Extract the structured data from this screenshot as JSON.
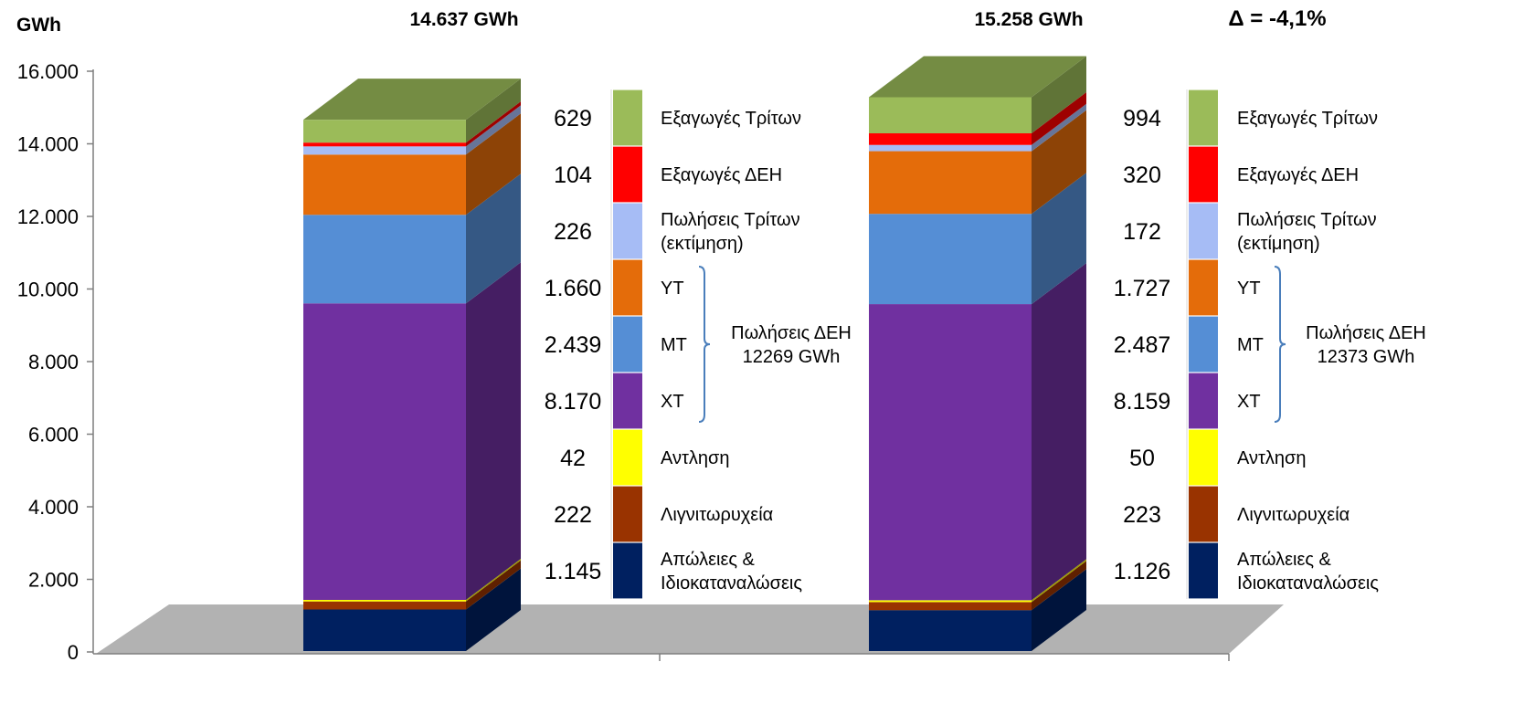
{
  "chart_data": {
    "type": "bar",
    "stacked": true,
    "style": "3d-stacked-columns",
    "ylabel": "GWh",
    "ylim": [
      0,
      16000
    ],
    "yticks": [
      "0",
      "2.000",
      "4.000",
      "6.000",
      "8.000",
      "10.000",
      "12.000",
      "14.000",
      "16.000"
    ],
    "grid": false,
    "delta_label": "Δ = -4,1%",
    "series": [
      {
        "name": "Απώλειες & Ιδιοκαταναλώσεις",
        "color": "#002060"
      },
      {
        "name": "Λιγνιτωρυχεία",
        "color": "#993300"
      },
      {
        "name": "Αντληση",
        "color": "#ffff00"
      },
      {
        "name": "ΧΤ",
        "color": "#7030a0"
      },
      {
        "name": "ΜΤ",
        "color": "#558ed5"
      },
      {
        "name": "ΥΤ",
        "color": "#e46c0a"
      },
      {
        "name": "Πωλήσεις Τρίτων (εκτίμηση)",
        "color": "#a6bcf5"
      },
      {
        "name": "Εξαγωγές ΔΕΗ",
        "color": "#ff0000"
      },
      {
        "name": "Εξαγωγές Τρίτων",
        "color": "#9bbb59"
      }
    ],
    "bars": [
      {
        "total_label": "14.637 GWh",
        "values": [
          1145,
          222,
          42,
          8170,
          2439,
          1660,
          226,
          104,
          629
        ],
        "value_labels": [
          "1.145",
          "222",
          "42",
          "8.170",
          "2.439",
          "1.660",
          "226",
          "104",
          "629"
        ],
        "bracket_label": [
          "Πωλήσεις ΔΕΗ",
          "12269 GWh"
        ]
      },
      {
        "total_label": "15.258 GWh",
        "values": [
          1126,
          223,
          50,
          8159,
          2487,
          1727,
          172,
          320,
          994
        ],
        "value_labels": [
          "1.126",
          "223",
          "50",
          "8.159",
          "2.487",
          "1.727",
          "172",
          "320",
          "994"
        ],
        "bracket_label": [
          "Πωλήσεις ΔΕΗ",
          "12373 GWh"
        ]
      }
    ],
    "legend_labels": [
      [
        "Απώλειες &",
        "Ιδιοκαταναλώσεις"
      ],
      [
        "Λιγνιτωρυχεία"
      ],
      [
        "Αντληση"
      ],
      [
        "ΧΤ"
      ],
      [
        "ΜΤ"
      ],
      [
        "ΥΤ"
      ],
      [
        "Πωλήσεις Τρίτων",
        "(εκτίμηση)"
      ],
      [
        "Εξαγωγές ΔΕΗ"
      ],
      [
        "Εξαγωγές Τρίτων"
      ]
    ]
  }
}
